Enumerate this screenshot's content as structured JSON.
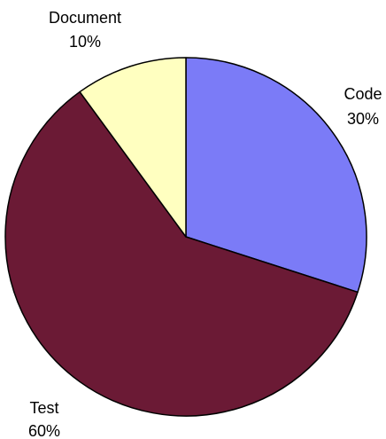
{
  "chart_data": {
    "type": "pie",
    "start_angle_deg": 0,
    "direction": "clockwise",
    "border_color": "#000000",
    "slices": [
      {
        "label": "Code",
        "value": 30,
        "value_label": "30%",
        "color": "#7b7bf7"
      },
      {
        "label": "Test",
        "value": 60,
        "value_label": "60%",
        "color": "#6b1a35"
      },
      {
        "label": "Document",
        "value": 10,
        "value_label": "10%",
        "color": "#ffffc0"
      }
    ]
  }
}
